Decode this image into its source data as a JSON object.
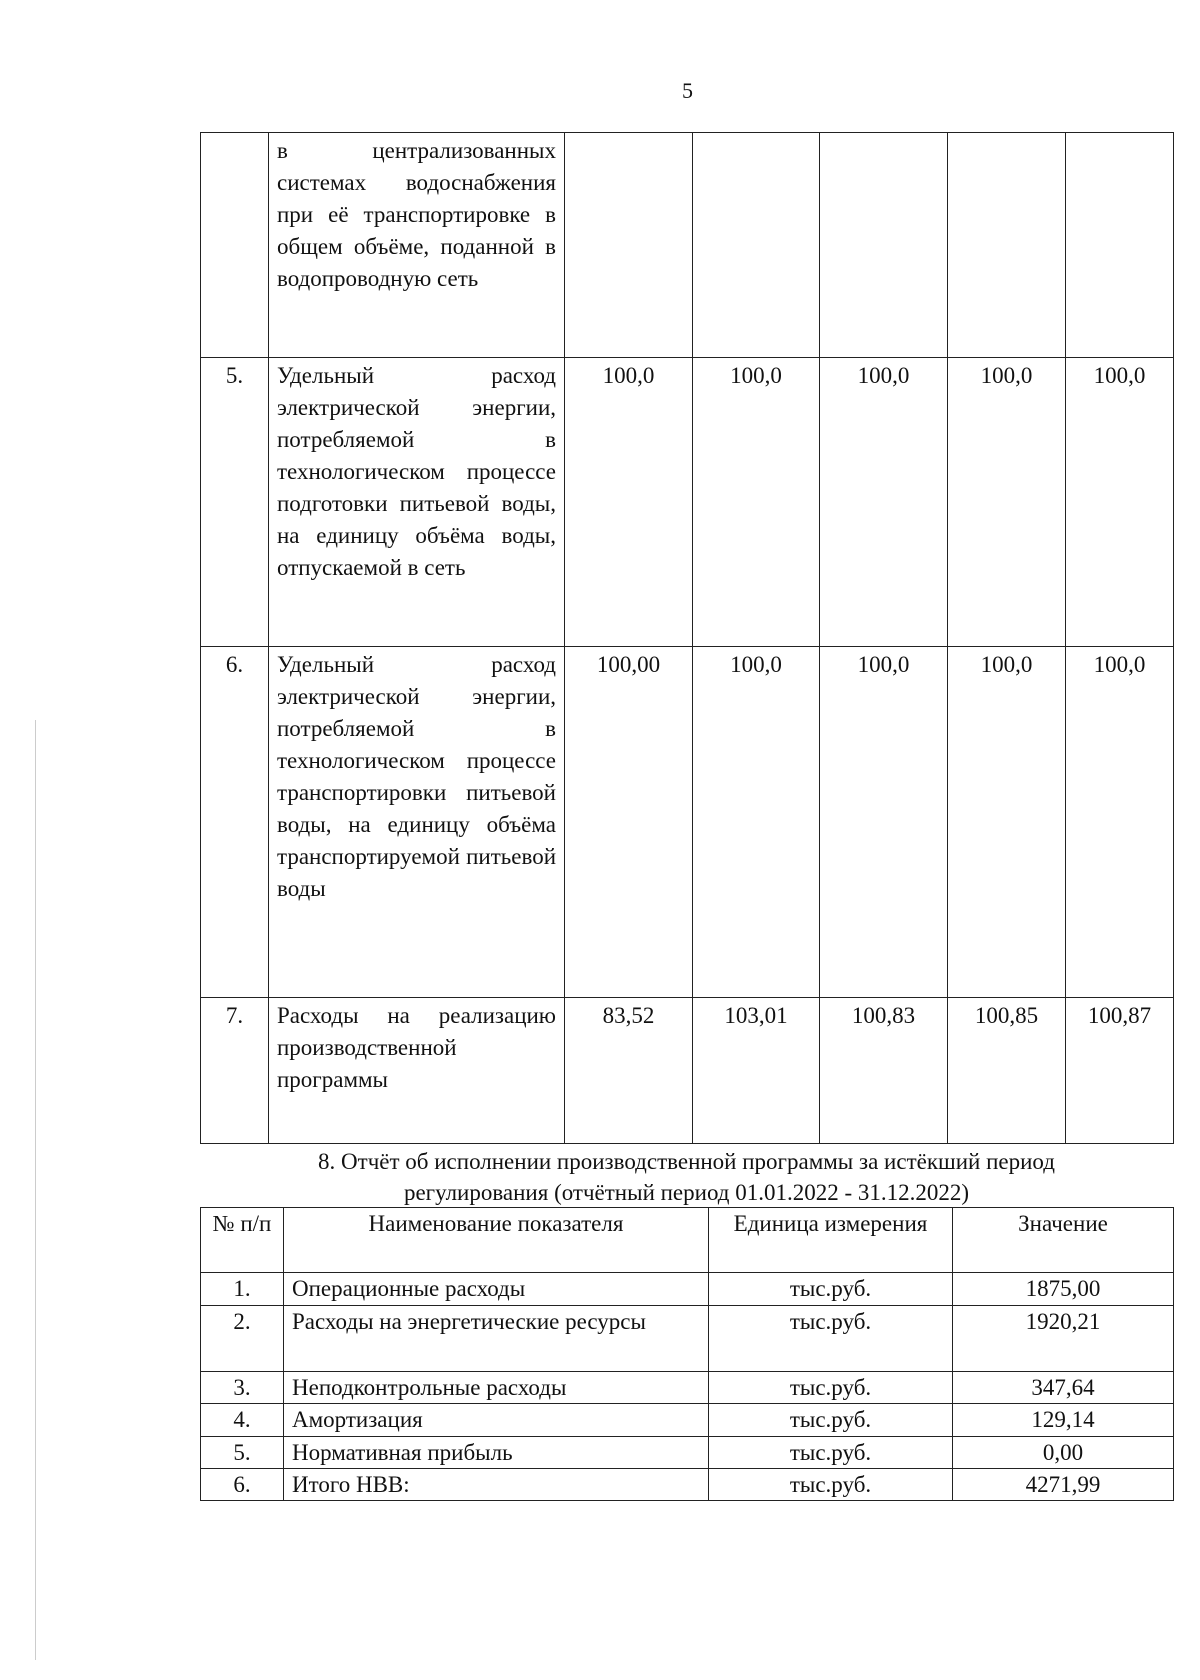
{
  "page_number": "5",
  "table1": {
    "rows": [
      {
        "num": "",
        "name": "в централизованных системах водоснабжения при её транспортировке в общем объёме, поданной в водопроводную сеть",
        "values": [
          "",
          "",
          "",
          "",
          ""
        ]
      },
      {
        "num": "5.",
        "name": "Удельный расход электрической энергии, потребляемой в технологическом процессе подготовки питьевой воды, на единицу объёма воды, отпускаемой в сеть",
        "values": [
          "100,0",
          "100,0",
          "100,0",
          "100,0",
          "100,0"
        ]
      },
      {
        "num": "6.",
        "name": "Удельный расход электрической энергии, потребляемой в технологическом процессе транспортировки питьевой воды, на единицу объёма транспортируемой питьевой воды",
        "values": [
          "100,00",
          "100,0",
          "100,0",
          "100,0",
          "100,0"
        ]
      },
      {
        "num": "7.",
        "name": "Расходы на реализацию производственной программы",
        "values": [
          "83,52",
          "103,01",
          "100,83",
          "100,85",
          "100,87"
        ]
      }
    ]
  },
  "section8": {
    "title_line1": "8. Отчёт об исполнении производственной программы за истёкший период",
    "title_line2": "регулирования (отчётный период 01.01.2022 - 31.12.2022)",
    "headers": {
      "num": "№ п/п",
      "name": "Наименование показателя",
      "unit": "Единица измерения",
      "value": "Значение"
    },
    "rows": [
      {
        "num": "1.",
        "name": "Операционные расходы",
        "unit": "тыс.руб.",
        "value": "1875,00"
      },
      {
        "num": "2.",
        "name": "Расходы на энергетические ресурсы",
        "unit": "тыс.руб.",
        "value": "1920,21"
      },
      {
        "num": "3.",
        "name": "Неподконтрольные расходы",
        "unit": "тыс.руб.",
        "value": "347,64"
      },
      {
        "num": "4.",
        "name": "Амортизация",
        "unit": "тыс.руб.",
        "value": "129,14"
      },
      {
        "num": "5.",
        "name": "Нормативная прибыль",
        "unit": "тыс.руб.",
        "value": "0,00"
      },
      {
        "num": "6.",
        "name": "Итого НВВ:",
        "unit": "тыс.руб.",
        "value": "4271,99"
      }
    ]
  }
}
